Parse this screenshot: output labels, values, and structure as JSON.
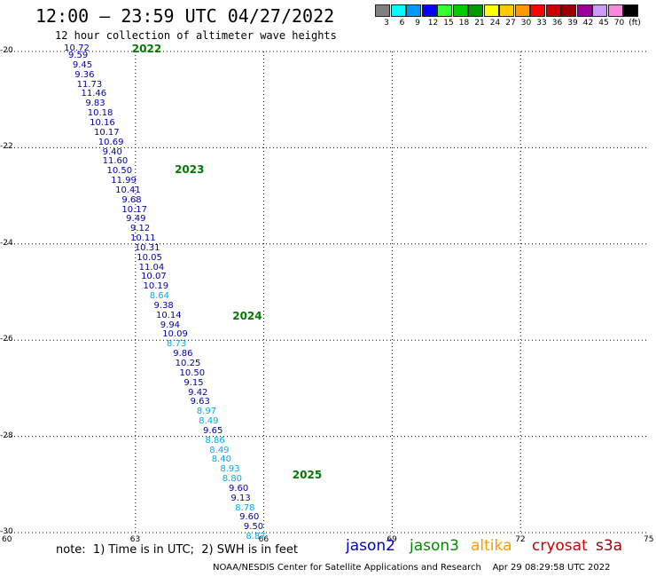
{
  "header": {
    "title": "12:00 – 23:59 UTC 04/27/2022",
    "subtitle": "12 hour collection of altimeter wave heights"
  },
  "colorbar": {
    "colors": [
      "#808080",
      "#00ffff",
      "#0099ff",
      "#0000ff",
      "#33ff33",
      "#00cc00",
      "#009900",
      "#ffff00",
      "#ffcc00",
      "#ff9900",
      "#ff0000",
      "#cc0000",
      "#990000",
      "#990099",
      "#cc99ff",
      "#ff88dd",
      "#000000"
    ],
    "labels": [
      "3",
      "6",
      "9",
      "12",
      "15",
      "18",
      "21",
      "24",
      "27",
      "30",
      "33",
      "36",
      "39",
      "42",
      "45",
      "70",
      "(ft)"
    ]
  },
  "axes": {
    "y_ticks": [
      "-20",
      "-22",
      "-24",
      "-26",
      "-28",
      "-30"
    ],
    "x_ticks": [
      "60",
      "63",
      "66",
      "69",
      "72",
      "75"
    ]
  },
  "observations": [
    {
      "lat": -20.0,
      "lon": 62.2,
      "v": "10.72",
      "c": "#0000aa"
    },
    {
      "lat": -20.15,
      "lon": 62.3,
      "v": "9.59",
      "c": "#0000aa"
    },
    {
      "lat": -20.35,
      "lon": 62.4,
      "v": "9.45",
      "c": "#0000aa"
    },
    {
      "lat": -20.55,
      "lon": 62.45,
      "v": "9.36",
      "c": "#0000aa"
    },
    {
      "lat": -20.75,
      "lon": 62.5,
      "v": "11.73",
      "c": "#0000aa"
    },
    {
      "lat": -20.95,
      "lon": 62.6,
      "v": "11.46",
      "c": "#0000aa"
    },
    {
      "lat": -21.15,
      "lon": 62.7,
      "v": "9.83",
      "c": "#0000aa"
    },
    {
      "lat": -21.35,
      "lon": 62.75,
      "v": "10.18",
      "c": "#0000aa"
    },
    {
      "lat": -21.55,
      "lon": 62.8,
      "v": "10.16",
      "c": "#0000aa"
    },
    {
      "lat": -21.75,
      "lon": 62.9,
      "v": "10.17",
      "c": "#0000aa"
    },
    {
      "lat": -21.95,
      "lon": 63.0,
      "v": "10.69",
      "c": "#0000aa"
    },
    {
      "lat": -22.15,
      "lon": 63.1,
      "v": "9.40",
      "c": "#0000aa"
    },
    {
      "lat": -22.35,
      "lon": 63.1,
      "v": "11.60",
      "c": "#0000aa"
    },
    {
      "lat": -22.55,
      "lon": 63.2,
      "v": "10.50",
      "c": "#0000aa"
    },
    {
      "lat": -22.75,
      "lon": 63.3,
      "v": "11.99",
      "c": "#0000aa"
    },
    {
      "lat": -22.95,
      "lon": 63.4,
      "v": "10.41",
      "c": "#0000aa"
    },
    {
      "lat": -23.15,
      "lon": 63.55,
      "v": "9.68",
      "c": "#0000aa"
    },
    {
      "lat": -23.35,
      "lon": 63.55,
      "v": "10.17",
      "c": "#0000aa"
    },
    {
      "lat": -23.55,
      "lon": 63.65,
      "v": "9.49",
      "c": "#0000aa"
    },
    {
      "lat": -23.75,
      "lon": 63.75,
      "v": "9.12",
      "c": "#0000aa"
    },
    {
      "lat": -23.95,
      "lon": 63.75,
      "v": "10.11",
      "c": "#0000aa"
    },
    {
      "lat": -24.15,
      "lon": 63.85,
      "v": "10.31",
      "c": "#0000aa"
    },
    {
      "lat": -24.35,
      "lon": 63.9,
      "v": "10.05",
      "c": "#0000aa"
    },
    {
      "lat": -24.55,
      "lon": 63.95,
      "v": "11.04",
      "c": "#0000aa"
    },
    {
      "lat": -24.75,
      "lon": 64.0,
      "v": "10.07",
      "c": "#0000aa"
    },
    {
      "lat": -24.95,
      "lon": 64.05,
      "v": "10.19",
      "c": "#0000aa"
    },
    {
      "lat": -25.15,
      "lon": 64.2,
      "v": "8.64",
      "c": "#00aaee"
    },
    {
      "lat": -25.35,
      "lon": 64.3,
      "v": "9.38",
      "c": "#0000aa"
    },
    {
      "lat": -25.55,
      "lon": 64.35,
      "v": "10.14",
      "c": "#0000aa"
    },
    {
      "lat": -25.75,
      "lon": 64.45,
      "v": "9.94",
      "c": "#0000aa"
    },
    {
      "lat": -25.95,
      "lon": 64.5,
      "v": "10.09",
      "c": "#0000aa"
    },
    {
      "lat": -26.15,
      "lon": 64.6,
      "v": "8.73",
      "c": "#00aaee"
    },
    {
      "lat": -26.35,
      "lon": 64.75,
      "v": "9.86",
      "c": "#0000aa"
    },
    {
      "lat": -26.55,
      "lon": 64.8,
      "v": "10.25",
      "c": "#0000aa"
    },
    {
      "lat": -26.75,
      "lon": 64.9,
      "v": "10.50",
      "c": "#0000aa"
    },
    {
      "lat": -26.95,
      "lon": 65.0,
      "v": "9.15",
      "c": "#0000aa"
    },
    {
      "lat": -27.15,
      "lon": 65.1,
      "v": "9.42",
      "c": "#0000aa"
    },
    {
      "lat": -27.35,
      "lon": 65.15,
      "v": "9.63",
      "c": "#0000aa"
    },
    {
      "lat": -27.55,
      "lon": 65.3,
      "v": "8.97",
      "c": "#00aaee"
    },
    {
      "lat": -27.75,
      "lon": 65.35,
      "v": "8.49",
      "c": "#00aaee"
    },
    {
      "lat": -27.95,
      "lon": 65.45,
      "v": "9.65",
      "c": "#0000aa"
    },
    {
      "lat": -28.15,
      "lon": 65.5,
      "v": "8.86",
      "c": "#00aaee"
    },
    {
      "lat": -28.35,
      "lon": 65.6,
      "v": "8.49",
      "c": "#00aaee"
    },
    {
      "lat": -28.55,
      "lon": 65.65,
      "v": "8.40",
      "c": "#00aaee"
    },
    {
      "lat": -28.75,
      "lon": 65.85,
      "v": "8.93",
      "c": "#00aaee"
    },
    {
      "lat": -28.95,
      "lon": 65.9,
      "v": "8.80",
      "c": "#00aaee"
    },
    {
      "lat": -29.15,
      "lon": 66.05,
      "v": "9.60",
      "c": "#0000aa"
    },
    {
      "lat": -29.35,
      "lon": 66.1,
      "v": "9.13",
      "c": "#0000aa"
    },
    {
      "lat": -29.55,
      "lon": 66.2,
      "v": "8.78",
      "c": "#00aaee"
    },
    {
      "lat": -29.75,
      "lon": 66.3,
      "v": "9.60",
      "c": "#0000aa"
    },
    {
      "lat": -29.95,
      "lon": 66.4,
      "v": "9.50",
      "c": "#0000aa"
    },
    {
      "lat": -30.15,
      "lon": 66.45,
      "v": "8.87",
      "c": "#00aaee"
    }
  ],
  "time_labels": [
    {
      "lat": -20.0,
      "lon": 63.0,
      "v": "2022"
    },
    {
      "lat": -22.5,
      "lon": 64.0,
      "v": "2023"
    },
    {
      "lat": -25.55,
      "lon": 65.35,
      "v": "2024"
    },
    {
      "lat": -28.85,
      "lon": 66.75,
      "v": "2025"
    }
  ],
  "footer": {
    "note": "note:  1) Time is in UTC;  2) SWH is in feet",
    "satellites": [
      {
        "name": "jason2",
        "color": "#0000cc"
      },
      {
        "name": "jason3",
        "color": "#008800"
      },
      {
        "name": "altika",
        "color": "#ff9900"
      },
      {
        "name": "cryosat",
        "color": "#cc0000"
      },
      {
        "name": "s3a",
        "color": "#990000"
      }
    ],
    "credit": "NOAA/NESDIS Center for Satellite Applications and Research    Apr 29 08:29:58 UTC 2022"
  }
}
